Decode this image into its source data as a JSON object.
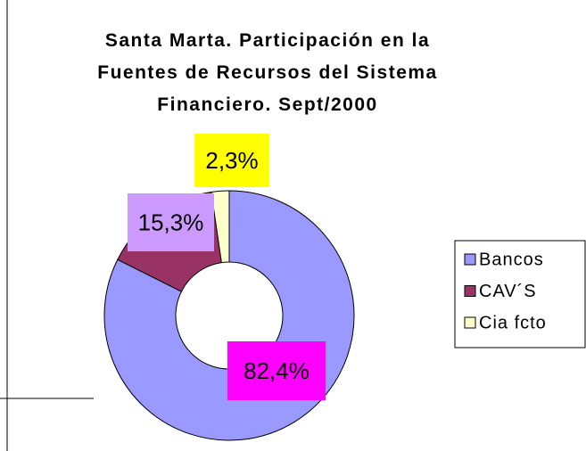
{
  "chart_data": {
    "type": "donut",
    "title": "Santa Marta. Participación en la Fuentes de Recursos del Sistema Financiero. Sept/2000",
    "categories": [
      "Bancos",
      "CAV´S",
      "Cia fcto"
    ],
    "values": [
      82.4,
      15.3,
      2.3
    ],
    "value_labels": [
      "82,4%",
      "15,3%",
      "2,3%"
    ],
    "colors": [
      "#9999ff",
      "#993366",
      "#ffffcc"
    ],
    "label_colors": [
      "#ff00ff",
      "#cc99ff",
      "#ffff00"
    ],
    "legend": "right"
  }
}
